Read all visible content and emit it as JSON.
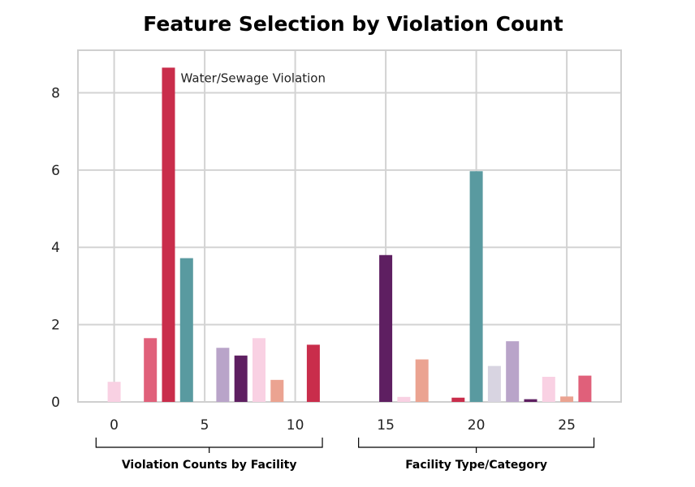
{
  "chart_data": {
    "type": "bar",
    "title": "Feature Selection by Violation Count",
    "xlabel": "",
    "ylabel": "",
    "xlim": [
      -2,
      28
    ],
    "ylim": [
      0,
      9.1
    ],
    "grid": true,
    "x_ticks": [
      0,
      5,
      10,
      15,
      20,
      25
    ],
    "y_ticks": [
      0,
      2,
      4,
      6,
      8
    ],
    "bars": [
      {
        "x": 0,
        "value": 0.52,
        "color": "#f9d1e3"
      },
      {
        "x": 2,
        "value": 1.65,
        "color": "#e0607a"
      },
      {
        "x": 3,
        "value": 8.65,
        "color": "#c92d4b"
      },
      {
        "x": 4,
        "value": 3.72,
        "color": "#599aa0"
      },
      {
        "x": 6,
        "value": 1.4,
        "color": "#b9a4c9"
      },
      {
        "x": 7,
        "value": 1.2,
        "color": "#5e1f61"
      },
      {
        "x": 8,
        "value": 1.65,
        "color": "#f9d1e3"
      },
      {
        "x": 9,
        "value": 0.57,
        "color": "#eba391"
      },
      {
        "x": 11,
        "value": 1.48,
        "color": "#c92d4b"
      },
      {
        "x": 15,
        "value": 3.8,
        "color": "#5e1f61"
      },
      {
        "x": 16,
        "value": 0.13,
        "color": "#f9d1e3"
      },
      {
        "x": 17,
        "value": 1.1,
        "color": "#eba391"
      },
      {
        "x": 19,
        "value": 0.11,
        "color": "#c92d4b"
      },
      {
        "x": 20,
        "value": 5.97,
        "color": "#599aa0"
      },
      {
        "x": 21,
        "value": 0.93,
        "color": "#d8d4e1"
      },
      {
        "x": 22,
        "value": 1.57,
        "color": "#b9a4c9"
      },
      {
        "x": 23,
        "value": 0.07,
        "color": "#5e1f61"
      },
      {
        "x": 24,
        "value": 0.65,
        "color": "#f9d1e3"
      },
      {
        "x": 25,
        "value": 0.14,
        "color": "#eba391"
      },
      {
        "x": 26,
        "value": 0.68,
        "color": "#e0607a"
      }
    ],
    "annotations": [
      {
        "text": "Water/Sewage Violation",
        "x": 3,
        "y": 8.4
      }
    ],
    "groups": [
      {
        "label": "Violation Counts by Facility",
        "x_start": -1,
        "x_end": 11.5
      },
      {
        "label": "Facility Type/Category",
        "x_start": 13.5,
        "x_end": 26.5
      }
    ]
  }
}
